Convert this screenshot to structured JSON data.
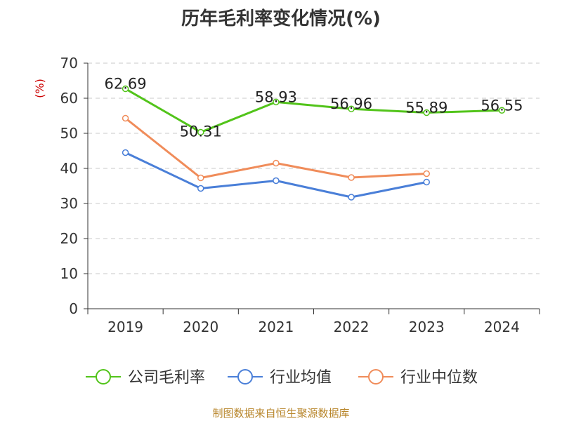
{
  "chart_data": {
    "type": "line",
    "title": "历年毛利率变化情况(%)",
    "ylabel": "(%)",
    "xlabel": "",
    "categories": [
      "2019",
      "2020",
      "2021",
      "2022",
      "2023",
      "2024"
    ],
    "ylim": [
      0,
      70
    ],
    "yticks": [
      "0",
      "10",
      "20",
      "30",
      "40",
      "50",
      "60",
      "70"
    ],
    "grid": true,
    "legend_position": "bottom",
    "series": [
      {
        "name": "公司毛利率",
        "color": "#52c41a",
        "values": [
          62.69,
          50.31,
          58.93,
          56.96,
          55.89,
          56.55
        ],
        "labels": [
          "62.69",
          "50.31",
          "58.93",
          "56.96",
          "55.89",
          "56.55"
        ]
      },
      {
        "name": "行业均值",
        "color": "#4a7fd8",
        "values": [
          44.5,
          34.3,
          36.5,
          31.8,
          36.1,
          null
        ]
      },
      {
        "name": "行业中位数",
        "color": "#f08c5a",
        "values": [
          54.3,
          37.3,
          41.5,
          37.4,
          38.5,
          null
        ]
      }
    ],
    "unit_color": "#cc0000"
  },
  "source_note": "制图数据来自恒生聚源数据库"
}
